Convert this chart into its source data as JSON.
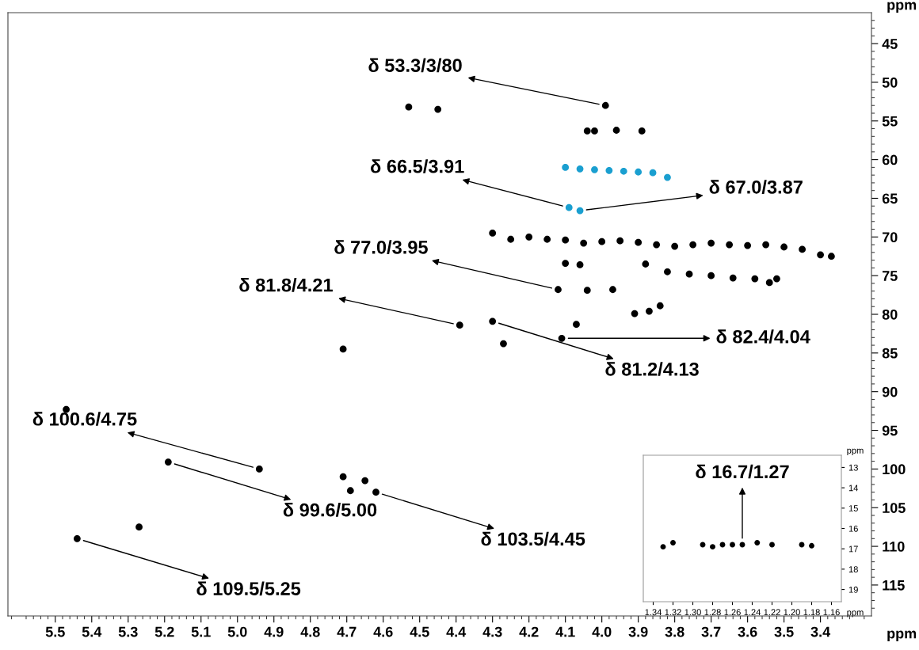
{
  "chart_data": [
    {
      "type": "scatter",
      "xlabel": "ppm",
      "ylabel": "ppm",
      "xlim": [
        5.63,
        3.26
      ],
      "ylim": [
        119,
        41
      ],
      "marker": "circle",
      "grid": false,
      "tick_labels": "xy",
      "xticks": [
        5.5,
        5.4,
        5.3,
        5.2,
        5.1,
        {
          "value": 5.0,
          "label": "5.0"
        },
        4.9,
        4.8,
        4.7,
        4.6,
        4.5,
        4.4,
        4.3,
        4.2,
        4.1,
        {
          "value": 4.0,
          "label": "4.0"
        },
        3.9,
        3.8,
        3.7,
        3.6,
        3.5,
        3.4,
        {
          "value": 5.62,
          "label": null
        },
        {
          "value": 5.58,
          "label": null
        },
        {
          "value": 5.56,
          "label": null
        },
        {
          "value": 5.54,
          "label": null
        },
        {
          "value": 5.52,
          "label": null
        },
        {
          "value": 5.48,
          "label": null
        },
        {
          "value": 5.46,
          "label": null
        },
        {
          "value": 5.44,
          "label": null
        },
        {
          "value": 5.42,
          "label": null
        },
        {
          "value": 5.38,
          "label": null
        },
        {
          "value": 5.36,
          "label": null
        },
        {
          "value": 5.34,
          "label": null
        },
        {
          "value": 5.32,
          "label": null
        },
        {
          "value": 5.28,
          "label": null
        },
        {
          "value": 5.26,
          "label": null
        },
        {
          "value": 5.24,
          "label": null
        },
        {
          "value": 5.22,
          "label": null
        },
        {
          "value": 5.18,
          "label": null
        },
        {
          "value": 5.16,
          "label": null
        },
        {
          "value": 5.14,
          "label": null
        },
        {
          "value": 5.12,
          "label": null
        },
        {
          "value": 5.08,
          "label": null
        },
        {
          "value": 5.06,
          "label": null
        },
        {
          "value": 5.04,
          "label": null
        },
        {
          "value": 5.02,
          "label": null
        },
        {
          "value": 4.98,
          "label": null
        },
        {
          "value": 4.96,
          "label": null
        },
        {
          "value": 4.94,
          "label": null
        },
        {
          "value": 4.92,
          "label": null
        },
        {
          "value": 4.88,
          "label": null
        },
        {
          "value": 4.86,
          "label": null
        },
        {
          "value": 4.84,
          "label": null
        },
        {
          "value": 4.82,
          "label": null
        },
        {
          "value": 4.78,
          "label": null
        },
        {
          "value": 4.76,
          "label": null
        },
        {
          "value": 4.74,
          "label": null
        },
        {
          "value": 4.72,
          "label": null
        },
        {
          "value": 4.68,
          "label": null
        },
        {
          "value": 4.66,
          "label": null
        },
        {
          "value": 4.64,
          "label": null
        },
        {
          "value": 4.62,
          "label": null
        },
        {
          "value": 4.58,
          "label": null
        },
        {
          "value": 4.56,
          "label": null
        },
        {
          "value": 4.54,
          "label": null
        },
        {
          "value": 4.52,
          "label": null
        },
        {
          "value": 4.48,
          "label": null
        },
        {
          "value": 4.46,
          "label": null
        },
        {
          "value": 4.44,
          "label": null
        },
        {
          "value": 4.42,
          "label": null
        },
        {
          "value": 4.38,
          "label": null
        },
        {
          "value": 4.36,
          "label": null
        },
        {
          "value": 4.34,
          "label": null
        },
        {
          "value": 4.32,
          "label": null
        },
        {
          "value": 4.28,
          "label": null
        },
        {
          "value": 4.26,
          "label": null
        },
        {
          "value": 4.24,
          "label": null
        },
        {
          "value": 4.22,
          "label": null
        },
        {
          "value": 4.18,
          "label": null
        },
        {
          "value": 4.16,
          "label": null
        },
        {
          "value": 4.14,
          "label": null
        },
        {
          "value": 4.12,
          "label": null
        },
        {
          "value": 4.08,
          "label": null
        },
        {
          "value": 4.06,
          "label": null
        },
        {
          "value": 4.04,
          "label": null
        },
        {
          "value": 4.02,
          "label": null
        },
        {
          "value": 3.98,
          "label": null
        },
        {
          "value": 3.96,
          "label": null
        },
        {
          "value": 3.94,
          "label": null
        },
        {
          "value": 3.92,
          "label": null
        },
        {
          "value": 3.88,
          "label": null
        },
        {
          "value": 3.86,
          "label": null
        },
        {
          "value": 3.84,
          "label": null
        },
        {
          "value": 3.82,
          "label": null
        },
        {
          "value": 3.78,
          "label": null
        },
        {
          "value": 3.76,
          "label": null
        },
        {
          "value": 3.74,
          "label": null
        },
        {
          "value": 3.72,
          "label": null
        },
        {
          "value": 3.68,
          "label": null
        },
        {
          "value": 3.66,
          "label": null
        },
        {
          "value": 3.64,
          "label": null
        },
        {
          "value": 3.62,
          "label": null
        },
        {
          "value": 3.58,
          "label": null
        },
        {
          "value": 3.56,
          "label": null
        },
        {
          "value": 3.54,
          "label": null
        },
        {
          "value": 3.52,
          "label": null
        },
        {
          "value": 3.48,
          "label": null
        },
        {
          "value": 3.46,
          "label": null
        },
        {
          "value": 3.44,
          "label": null
        },
        {
          "value": 3.42,
          "label": null
        },
        {
          "value": 3.38,
          "label": null
        },
        {
          "value": 3.36,
          "label": null
        },
        {
          "value": 3.34,
          "label": null
        },
        {
          "value": 3.32,
          "label": null
        },
        {
          "value": 3.28,
          "label": null
        }
      ],
      "yticks": [
        45,
        50,
        55,
        60,
        65,
        70,
        75,
        80,
        85,
        90,
        95,
        100,
        105,
        110,
        115,
        {
          "value": 42,
          "label": null
        },
        {
          "value": 43,
          "label": null
        },
        {
          "value": 44,
          "label": null
        },
        {
          "value": 46,
          "label": null
        },
        {
          "value": 47,
          "label": null
        },
        {
          "value": 48,
          "label": null
        },
        {
          "value": 49,
          "label": null
        },
        {
          "value": 51,
          "label": null
        },
        {
          "value": 52,
          "label": null
        },
        {
          "value": 53,
          "label": null
        },
        {
          "value": 54,
          "label": null
        },
        {
          "value": 56,
          "label": null
        },
        {
          "value": 57,
          "label": null
        },
        {
          "value": 58,
          "label": null
        },
        {
          "value": 59,
          "label": null
        },
        {
          "value": 61,
          "label": null
        },
        {
          "value": 62,
          "label": null
        },
        {
          "value": 63,
          "label": null
        },
        {
          "value": 64,
          "label": null
        },
        {
          "value": 66,
          "label": null
        },
        {
          "value": 67,
          "label": null
        },
        {
          "value": 68,
          "label": null
        },
        {
          "value": 69,
          "label": null
        },
        {
          "value": 71,
          "label": null
        },
        {
          "value": 72,
          "label": null
        },
        {
          "value": 73,
          "label": null
        },
        {
          "value": 74,
          "label": null
        },
        {
          "value": 76,
          "label": null
        },
        {
          "value": 77,
          "label": null
        },
        {
          "value": 78,
          "label": null
        },
        {
          "value": 79,
          "label": null
        },
        {
          "value": 81,
          "label": null
        },
        {
          "value": 82,
          "label": null
        },
        {
          "value": 83,
          "label": null
        },
        {
          "value": 84,
          "label": null
        },
        {
          "value": 86,
          "label": null
        },
        {
          "value": 87,
          "label": null
        },
        {
          "value": 88,
          "label": null
        },
        {
          "value": 89,
          "label": null
        },
        {
          "value": 91,
          "label": null
        },
        {
          "value": 92,
          "label": null
        },
        {
          "value": 93,
          "label": null
        },
        {
          "value": 94,
          "label": null
        },
        {
          "value": 96,
          "label": null
        },
        {
          "value": 97,
          "label": null
        },
        {
          "value": 98,
          "label": null
        },
        {
          "value": 99,
          "label": null
        },
        {
          "value": 101,
          "label": null
        },
        {
          "value": 102,
          "label": null
        },
        {
          "value": 103,
          "label": null
        },
        {
          "value": 104,
          "label": null
        },
        {
          "value": 106,
          "label": null
        },
        {
          "value": 107,
          "label": null
        },
        {
          "value": 108,
          "label": null
        },
        {
          "value": 109,
          "label": null
        },
        {
          "value": 111,
          "label": null
        },
        {
          "value": 112,
          "label": null
        },
        {
          "value": 113,
          "label": null
        },
        {
          "value": 114,
          "label": null
        },
        {
          "value": 116,
          "label": null
        },
        {
          "value": 117,
          "label": null
        },
        {
          "value": 118,
          "label": null
        }
      ],
      "series": [
        {
          "color": "#1a9fd0",
          "x": [
            4.1,
            4.06,
            4.02,
            3.98,
            3.94,
            3.9,
            3.86,
            3.82,
            4.09,
            4.06
          ],
          "values": [
            61.0,
            61.2,
            61.3,
            61.4,
            61.5,
            61.6,
            61.7,
            62.3,
            66.2,
            66.6
          ]
        },
        {
          "color": "#000000",
          "x": [
            3.99,
            4.53,
            4.45,
            4.04,
            4.02,
            3.96,
            3.89,
            4.3,
            4.25,
            4.2,
            4.15,
            4.1,
            4.05,
            4.0,
            3.95,
            3.9,
            3.85,
            3.8,
            3.75,
            3.7,
            3.65,
            3.6,
            3.55,
            3.5,
            3.45,
            3.4,
            3.37,
            3.88,
            3.82,
            3.76,
            3.7,
            3.64,
            3.58,
            3.52,
            4.1,
            4.06,
            4.12,
            4.04,
            3.97,
            3.54,
            3.91,
            3.87,
            3.84,
            4.39,
            4.3,
            4.11,
            4.07,
            4.27,
            4.71,
            5.47,
            5.19,
            4.94,
            4.71,
            4.69,
            4.65,
            4.62,
            5.27,
            5.44
          ],
          "values": [
            53.0,
            53.2,
            53.5,
            56.3,
            56.3,
            56.2,
            56.3,
            69.5,
            70.3,
            70.0,
            70.3,
            70.4,
            70.8,
            70.6,
            70.5,
            70.7,
            71.0,
            71.2,
            71.0,
            70.8,
            71.0,
            71.1,
            71.0,
            71.3,
            71.6,
            72.3,
            72.5,
            73.5,
            74.5,
            74.8,
            75.0,
            75.3,
            75.4,
            75.4,
            73.4,
            73.6,
            76.8,
            76.9,
            76.8,
            75.9,
            79.9,
            79.6,
            78.9,
            81.4,
            80.9,
            83.1,
            81.3,
            83.8,
            84.5,
            92.3,
            99.1,
            100.0,
            101.0,
            102.8,
            101.5,
            103.0,
            107.5,
            109.0
          ]
        }
      ],
      "annotations": [
        {
          "text": "δ 53.3/3/80",
          "x": 3.99,
          "y": 53.0
        },
        {
          "text": "δ 66.5/3.91",
          "x": 4.09,
          "y": 66.2
        },
        {
          "text": "δ 67.0/3.87",
          "x": 4.06,
          "y": 66.6
        },
        {
          "text": "δ 77.0/3.95",
          "x": 4.12,
          "y": 76.8
        },
        {
          "text": "δ 81.8/4.21",
          "x": 4.39,
          "y": 81.4
        },
        {
          "text": "δ 81.2/4.13",
          "x": 4.3,
          "y": 80.9
        },
        {
          "text": "δ 82.4/4.04",
          "x": 4.11,
          "y": 83.1
        },
        {
          "text": "δ 100.6/4.75",
          "x": 4.94,
          "y": 100.0
        },
        {
          "text": "δ 99.6/5.00",
          "x": 5.19,
          "y": 99.1
        },
        {
          "text": "δ 103.5/4.45",
          "x": 4.62,
          "y": 103.0
        },
        {
          "text": "δ 109.5/5.25",
          "x": 5.44,
          "y": 109.0
        }
      ]
    },
    {
      "type": "scatter",
      "xlabel": "ppm",
      "ylabel": "ppm",
      "xlim": [
        1.35,
        1.15
      ],
      "ylim": [
        19.6,
        12.4
      ],
      "marker": "circle",
      "grid": false,
      "xticks": [
        1.34,
        1.32,
        {
          "value": 1.3,
          "label": "1.30"
        },
        1.28,
        1.26,
        1.24,
        1.22,
        {
          "value": 1.2,
          "label": "1.20"
        },
        1.18,
        1.16
      ],
      "yticks": [
        13,
        14,
        15,
        16,
        17,
        18,
        19
      ],
      "series": [
        {
          "color": "#000000",
          "x": [
            1.33,
            1.32,
            1.29,
            1.28,
            1.27,
            1.26,
            1.25,
            1.235,
            1.22,
            1.19,
            1.18
          ],
          "values": [
            16.9,
            16.7,
            16.8,
            16.9,
            16.8,
            16.8,
            16.8,
            16.7,
            16.8,
            16.8,
            16.85
          ]
        }
      ],
      "annotations": [
        {
          "text": "δ 16.7/1.27",
          "x": 1.25,
          "y": 16.8
        }
      ]
    }
  ]
}
